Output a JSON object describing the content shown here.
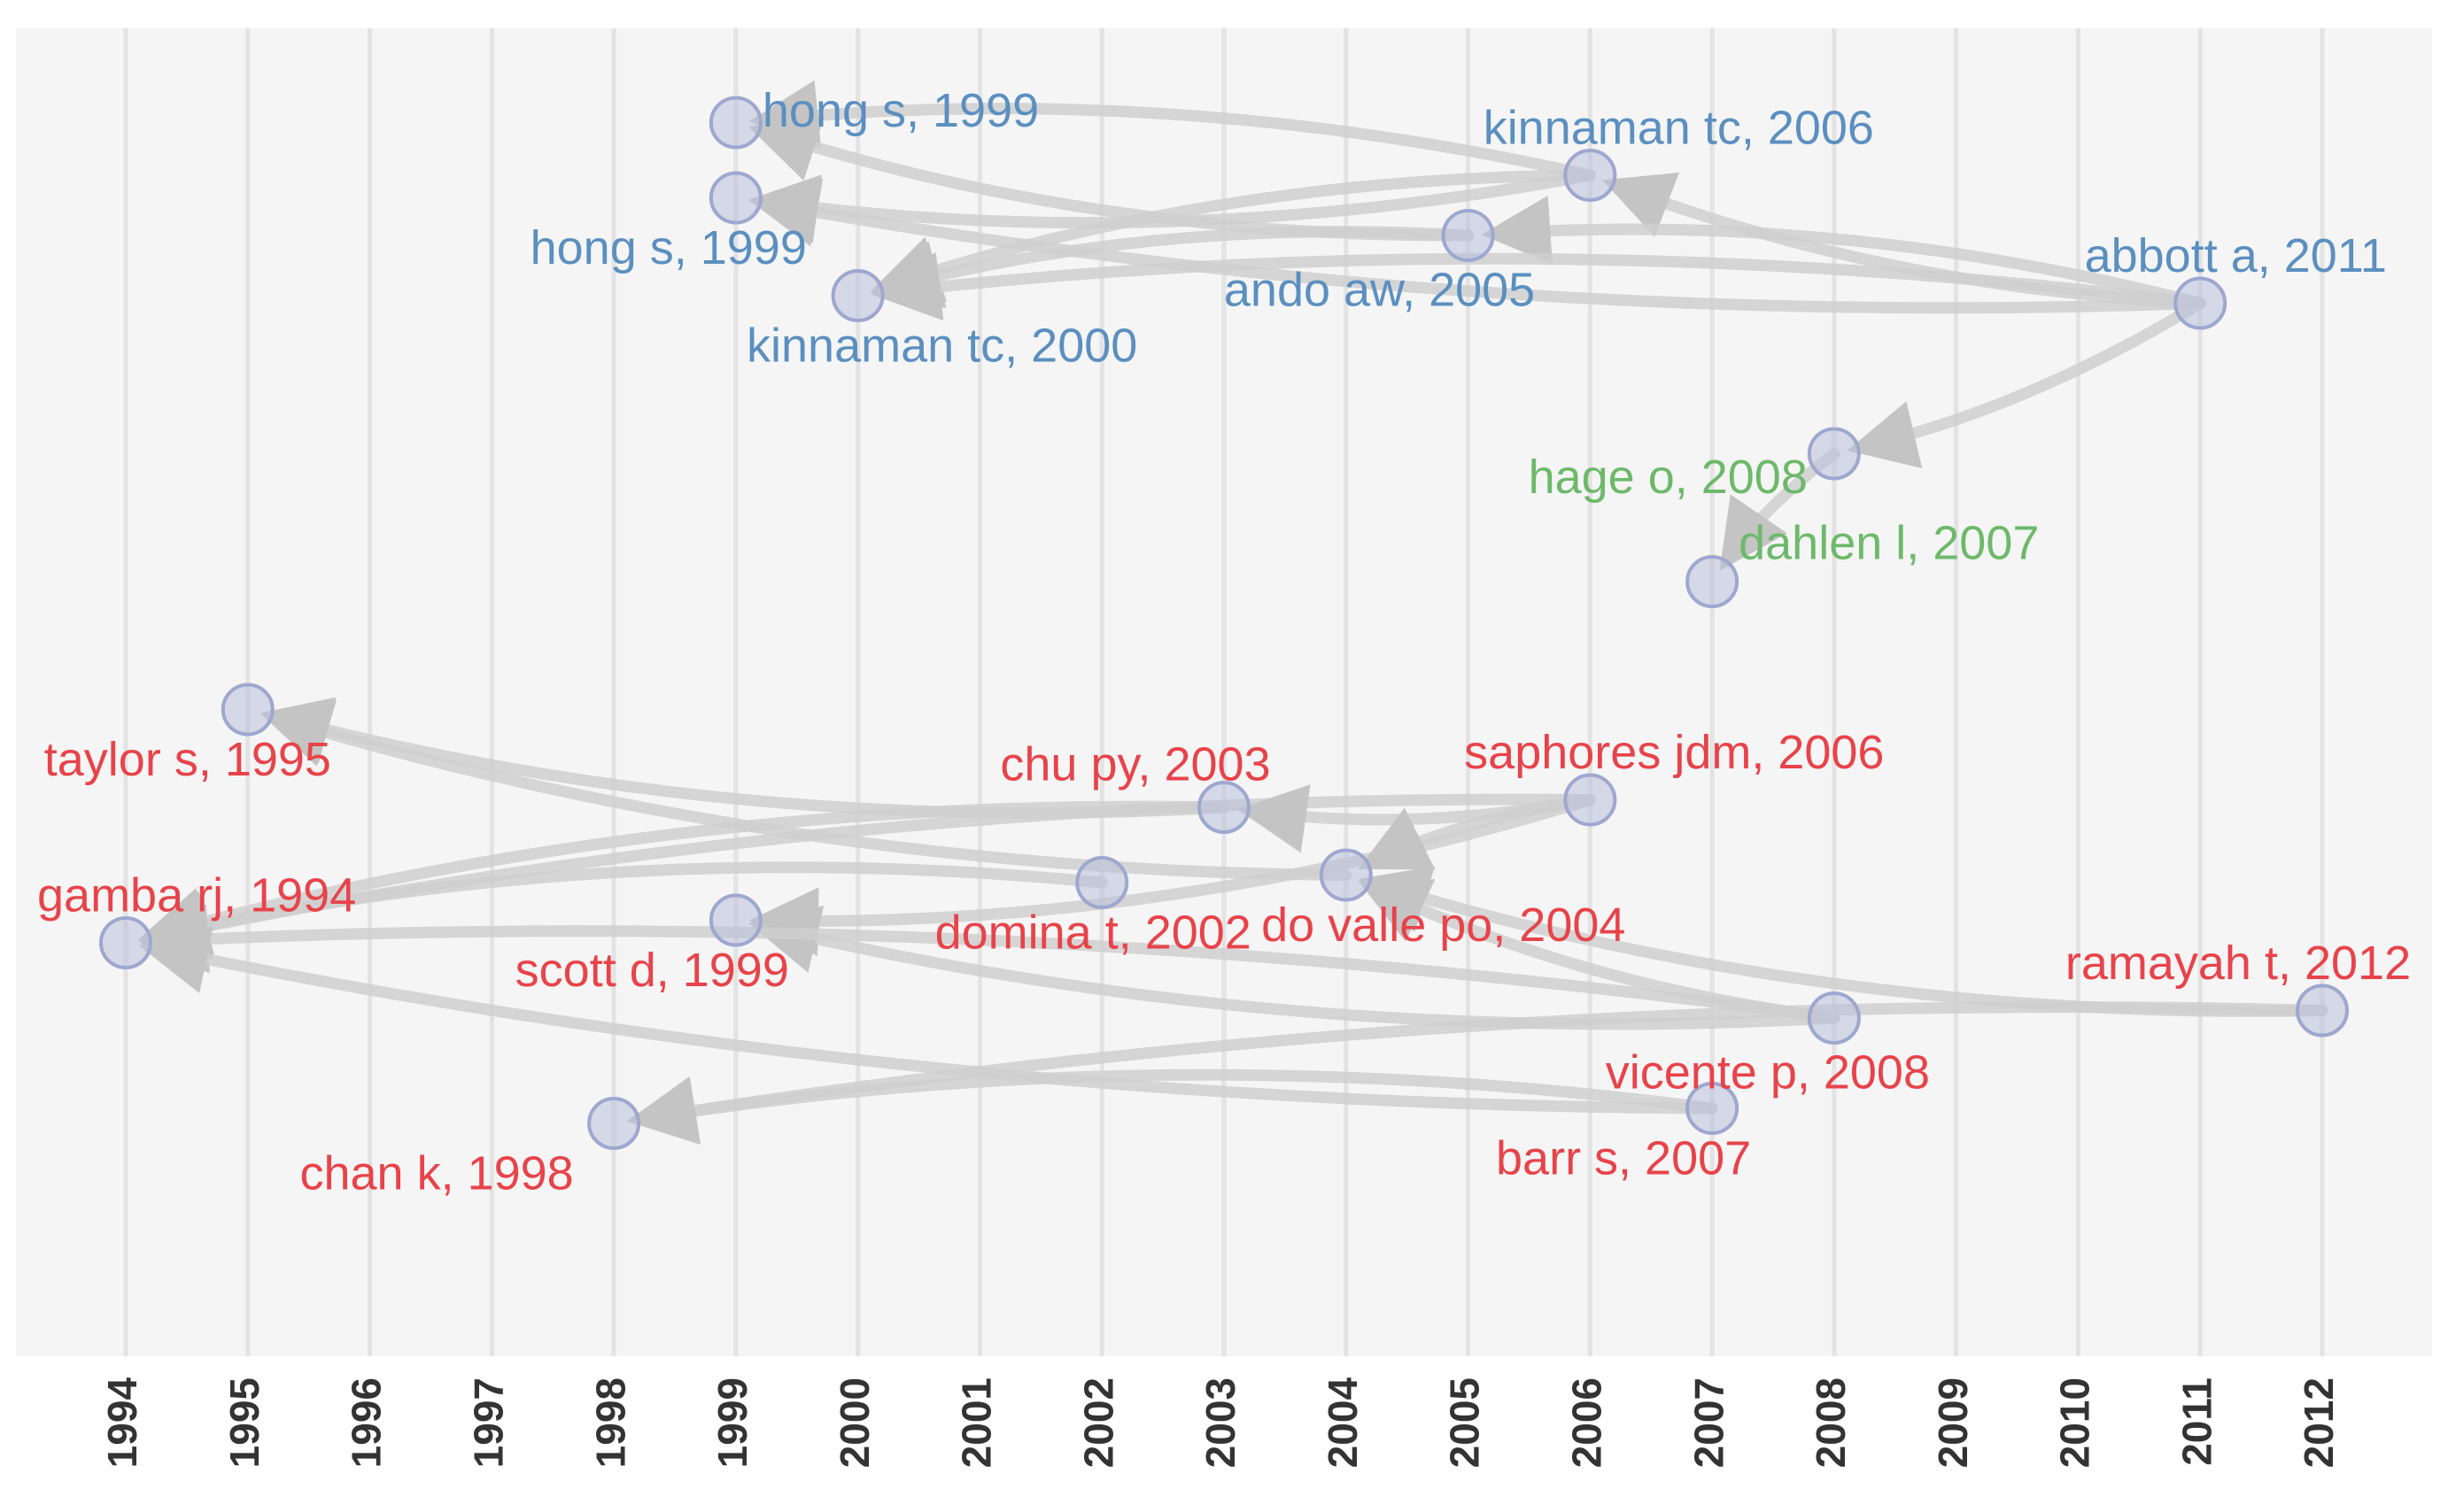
{
  "chart_data": {
    "type": "historiograph",
    "x_axis_years": [
      1994,
      1995,
      1996,
      1997,
      1998,
      1999,
      2000,
      2001,
      2002,
      2003,
      2004,
      2005,
      2006,
      2007,
      2008,
      2009,
      2010,
      2011,
      2012
    ],
    "clusters": {
      "blue": {
        "color": "#5b8fc0"
      },
      "green": {
        "color": "#6db96a"
      },
      "red": {
        "color": "#e8434a"
      }
    },
    "nodes": [
      {
        "id": "hong1999a",
        "label": "hong s, 1999",
        "year": 1999,
        "cluster": "blue",
        "row": 0.5
      },
      {
        "id": "hong1999b",
        "label": "hong s, 1999",
        "year": 1999,
        "cluster": "blue",
        "row": 1.5
      },
      {
        "id": "kinnaman2006",
        "label": "kinnaman tc, 2006",
        "year": 2006,
        "cluster": "blue",
        "row": 1.2
      },
      {
        "id": "ando2005",
        "label": "ando aw, 2005",
        "year": 2005,
        "cluster": "blue",
        "row": 2.0
      },
      {
        "id": "kinnaman2000",
        "label": "kinnaman tc, 2000",
        "year": 2000,
        "cluster": "blue",
        "row": 2.8
      },
      {
        "id": "abbott2011",
        "label": "abbott a, 2011",
        "year": 2011,
        "cluster": "blue",
        "row": 2.9
      },
      {
        "id": "hage2008",
        "label": "hage o, 2008",
        "year": 2008,
        "cluster": "green",
        "row": 4.9
      },
      {
        "id": "dahlen2007",
        "label": "dahlen l, 2007",
        "year": 2007,
        "cluster": "green",
        "row": 6.6
      },
      {
        "id": "taylor1995",
        "label": "taylor s, 1995",
        "year": 1995,
        "cluster": "red",
        "row": 8.3
      },
      {
        "id": "chu2003",
        "label": "chu py, 2003",
        "year": 2003,
        "cluster": "red",
        "row": 9.6
      },
      {
        "id": "saphores2006",
        "label": "saphores jdm, 2006",
        "year": 2006,
        "cluster": "red",
        "row": 9.5
      },
      {
        "id": "domina2002",
        "label": "domina t, 2002",
        "year": 2002,
        "cluster": "red",
        "row": 10.6
      },
      {
        "id": "dovalle2004",
        "label": "do valle po, 2004",
        "year": 2004,
        "cluster": "red",
        "row": 10.5
      },
      {
        "id": "gamba1994",
        "label": "gamba rj, 1994",
        "year": 1994,
        "cluster": "red",
        "row": 11.4
      },
      {
        "id": "scott1999",
        "label": "scott d, 1999",
        "year": 1999,
        "cluster": "red",
        "row": 11.1
      },
      {
        "id": "ramayah2012",
        "label": "ramayah t, 2012",
        "year": 2012,
        "cluster": "red",
        "row": 12.3
      },
      {
        "id": "vicente2008",
        "label": "vicente p, 2008",
        "year": 2008,
        "cluster": "red",
        "row": 12.4
      },
      {
        "id": "barr2007",
        "label": "barr s, 2007",
        "year": 2007,
        "cluster": "red",
        "row": 13.6
      },
      {
        "id": "chan1998",
        "label": "chan k, 1998",
        "year": 1998,
        "cluster": "red",
        "row": 13.8
      }
    ],
    "edges": [
      {
        "from": "kinnaman2006",
        "to": "hong1999a"
      },
      {
        "from": "kinnaman2006",
        "to": "hong1999b"
      },
      {
        "from": "kinnaman2006",
        "to": "kinnaman2000"
      },
      {
        "from": "ando2005",
        "to": "hong1999a"
      },
      {
        "from": "ando2005",
        "to": "kinnaman2000"
      },
      {
        "from": "abbott2011",
        "to": "kinnaman2006"
      },
      {
        "from": "abbott2011",
        "to": "ando2005"
      },
      {
        "from": "abbott2011",
        "to": "hong1999b"
      },
      {
        "from": "abbott2011",
        "to": "kinnaman2000"
      },
      {
        "from": "abbott2011",
        "to": "hage2008"
      },
      {
        "from": "hage2008",
        "to": "dahlen2007"
      },
      {
        "from": "chu2003",
        "to": "taylor1995"
      },
      {
        "from": "chu2003",
        "to": "gamba1994"
      },
      {
        "from": "dovalle2004",
        "to": "taylor1995"
      },
      {
        "from": "domina2002",
        "to": "gamba1994"
      },
      {
        "from": "saphores2006",
        "to": "scott1999"
      },
      {
        "from": "saphores2006",
        "to": "gamba1994"
      },
      {
        "from": "saphores2006",
        "to": "chu2003"
      },
      {
        "from": "saphores2006",
        "to": "dovalle2004"
      },
      {
        "from": "ramayah2012",
        "to": "dovalle2004"
      },
      {
        "from": "ramayah2012",
        "to": "chan1998"
      },
      {
        "from": "vicente2008",
        "to": "scott1999"
      },
      {
        "from": "vicente2008",
        "to": "gamba1994"
      },
      {
        "from": "vicente2008",
        "to": "dovalle2004"
      },
      {
        "from": "barr2007",
        "to": "chan1998"
      },
      {
        "from": "barr2007",
        "to": "gamba1994"
      }
    ]
  }
}
